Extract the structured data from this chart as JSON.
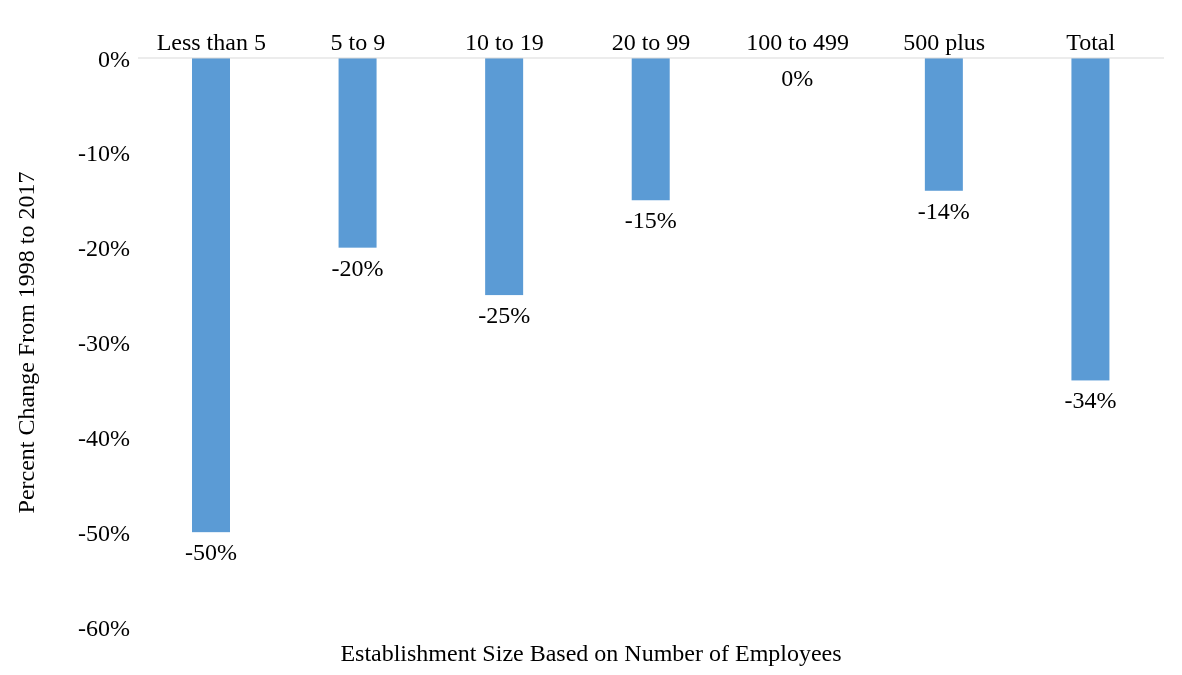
{
  "chart_data": {
    "type": "bar",
    "xlabel": "Establishment Size Based on Number of Employees",
    "ylabel": "Percent Change From 1998 to 2017",
    "categories": [
      "Less than 5",
      "5 to 9",
      "10 to 19",
      "20 to 99",
      "100 to 499",
      "500 plus",
      "Total"
    ],
    "values": [
      -50,
      -20,
      -25,
      -15,
      0,
      -14,
      -34
    ],
    "value_labels": [
      "-50%",
      "-20%",
      "-25%",
      "-15%",
      "0%",
      "-14%",
      "-34%"
    ],
    "color": "#5b9bd5",
    "ylim": [
      -60,
      0
    ],
    "yticks": [
      {
        "value": 0,
        "label": "0%"
      },
      {
        "value": -10,
        "label": "-10%"
      },
      {
        "value": -20,
        "label": "-20%"
      },
      {
        "value": -30,
        "label": "-30%"
      },
      {
        "value": -40,
        "label": "-40%"
      },
      {
        "value": -50,
        "label": "-50%"
      },
      {
        "value": -60,
        "label": "-60%"
      }
    ],
    "grid": false,
    "legend": false
  }
}
